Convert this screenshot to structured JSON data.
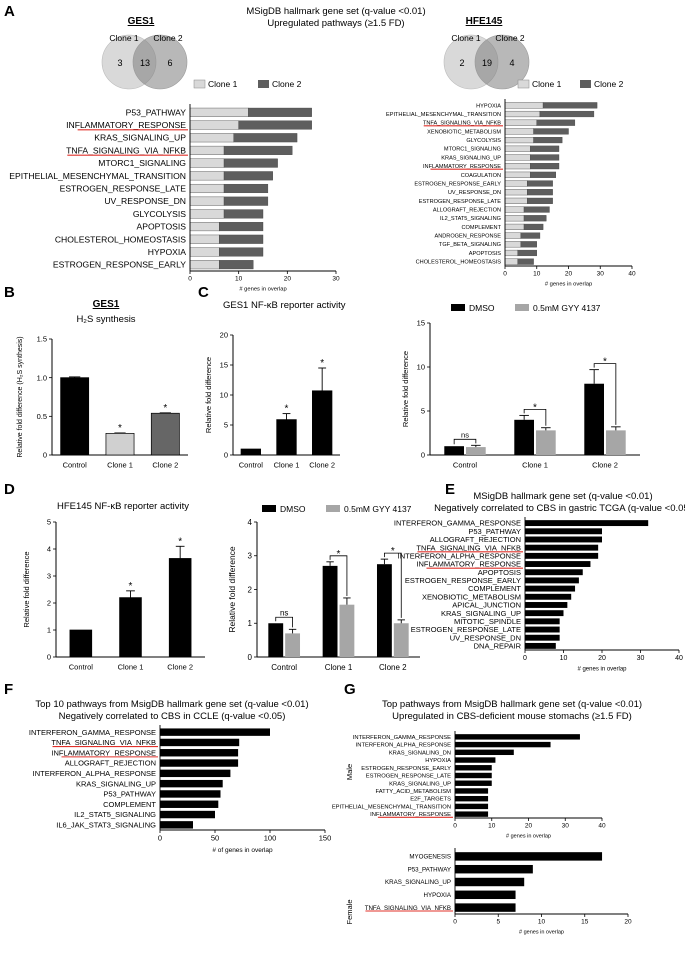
{
  "panel_labels": {
    "A": "A",
    "B": "B",
    "C": "C",
    "D": "D",
    "E": "E",
    "F": "F",
    "G": "G"
  },
  "panel_a": {
    "title1": "MSigDB hallmark gene set (q-value <0.01)",
    "title2": "Upregulated pathways (≥1.5 FD)",
    "legend_clone1": "Clone 1",
    "legend_clone2": "Clone 2",
    "xlabel": "# genes in overlap"
  },
  "venn_ges1": {
    "title": "GES1",
    "label1": "Clone 1",
    "label2": "Clone 2",
    "only1": "3",
    "both": "13",
    "only2": "6"
  },
  "venn_hfe": {
    "title": "HFE145",
    "label1": "Clone 1",
    "label2": "Clone 2",
    "only1": "2",
    "both": "19",
    "only2": "4"
  },
  "panel_b": {
    "title": "GES1",
    "subtitle": "H₂S synthesis",
    "ylabel": "Relative fold difference (H₂S synthesis)"
  },
  "panel_c": {
    "title": "GES1 NF-κB reporter activity",
    "ylabel": "Relative fold difference",
    "legend_dmso": "DMSO",
    "legend_gyy": "0.5mM GYY 4137"
  },
  "panel_d": {
    "title": "HFE145 NF-κB reporter activity",
    "ylabel": "Relative fold difference",
    "legend_dmso": "DMSO",
    "legend_gyy": "0.5mM GYY 4137"
  },
  "panel_e": {
    "title1": "MSigDB hallmark gene set (q-value <0.01)",
    "title2": "Negatively correlated to CBS in gastric TCGA (q-value <0.05)",
    "xlabel": "# genes in overlap"
  },
  "panel_f": {
    "title1": "Top 10 pathways from MsigDB hallmark gene set (q-value <0.01)",
    "title2": "Negatively correlated to CBS in CCLE (q-value <0.05)",
    "xlabel": "# of genes in overlap"
  },
  "panel_g": {
    "title1": "Top pathways from MsigDB hallmark gene set (q-value <0.01)",
    "title2": "Upregulated in CBS-deficient mouse stomachs (≥1.5 FD)",
    "xlabel": "# genes in overlap",
    "male_label": "Male",
    "female_label": "Female"
  },
  "colors": {
    "clone1": "#d9d9d9",
    "clone2": "#5e5e5e",
    "dmso": "#000000",
    "gyy": "#a6a6a6",
    "highlight": "#e0302a",
    "venn_fill": "#d9d9d9",
    "venn_overlap": "#9e9e9e"
  },
  "chart_data": [
    {
      "id": "A_ges1",
      "type": "bar",
      "orientation": "horizontal",
      "stacked": true,
      "categories": [
        "P53_PATHWAY",
        "INFLAMMATORY_RESPONSE",
        "KRAS_SIGNALING_UP",
        "TNFA_SIGNALING_VIA_NFKB",
        "MTORC1_SIGNALING",
        "EPITHELIAL_MESENCHYMAL_TRANSITION",
        "ESTROGEN_RESPONSE_LATE",
        "UV_RESPONSE_DN",
        "GLYCOLYSIS",
        "APOPTOSIS",
        "CHOLESTEROL_HOMEOSTASIS",
        "HYPOXIA",
        "ESTROGEN_RESPONSE_EARLY"
      ],
      "highlight": [
        "INFLAMMATORY_RESPONSE",
        "TNFA_SIGNALING_VIA_NFKB"
      ],
      "series": [
        {
          "name": "Clone 1",
          "values": [
            12,
            10,
            9,
            7,
            7,
            7,
            7,
            7,
            7,
            6,
            6,
            6,
            6
          ]
        },
        {
          "name": "Clone 2",
          "values": [
            13,
            15,
            13,
            14,
            11,
            10,
            9,
            9,
            8,
            9,
            9,
            9,
            7
          ]
        }
      ],
      "xlim": [
        0,
        30
      ],
      "xticks": [
        0,
        10,
        20,
        30
      ],
      "xlabel": "# genes in overlap"
    },
    {
      "id": "A_hfe",
      "type": "bar",
      "orientation": "horizontal",
      "stacked": true,
      "categories": [
        "HYPOXIA",
        "EPITHELIAL_MESENCHYMAL_TRANSITION",
        "TNFA_SIGNALING_VIA_NFKB",
        "XENOBIOTIC_METABOLISM",
        "GLYCOLYSIS",
        "MTORC1_SIGNALING",
        "KRAS_SIGNALING_UP",
        "INFLAMMATORY_RESPONSE",
        "COAGULATION",
        "ESTROGEN_RESPONSE_EARLY",
        "UV_RESPONSE_DN",
        "ESTROGEN_RESPONSE_LATE",
        "ALLOGRAFT_REJECTION",
        "IL2_STAT5_SIGNALING",
        "COMPLEMENT",
        "ANDROGEN_RESPONSE",
        "TGF_BETA_SIGNALING",
        "APOPTOSIS",
        "CHOLESTEROL_HOMEOSTASIS"
      ],
      "highlight": [
        "TNFA_SIGNALING_VIA_NFKB",
        "INFLAMMATORY_RESPONSE"
      ],
      "series": [
        {
          "name": "Clone 1",
          "values": [
            12,
            11,
            10,
            9,
            9,
            8,
            8,
            8,
            8,
            7,
            7,
            7,
            6,
            6,
            6,
            5,
            5,
            4,
            4
          ]
        },
        {
          "name": "Clone 2",
          "values": [
            17,
            17,
            12,
            11,
            9,
            9,
            9,
            9,
            8,
            8,
            8,
            8,
            8,
            7,
            6,
            6,
            5,
            6,
            5
          ]
        }
      ],
      "xlim": [
        0,
        40
      ],
      "xticks": [
        0,
        10,
        20,
        30,
        40
      ],
      "xlabel": "# genes in overlap"
    },
    {
      "id": "B",
      "type": "bar",
      "categories": [
        "Control",
        "Clone 1",
        "Clone 2"
      ],
      "values": [
        1.0,
        0.28,
        0.54
      ],
      "errors": [
        0.01,
        0.005,
        0.005
      ],
      "colors": [
        "#000000",
        "#d0d0d0",
        "#666666"
      ],
      "significance": [
        "",
        "*",
        "*"
      ],
      "ylim": [
        0,
        1.5
      ],
      "yticks": [
        "0",
        "0.5",
        "1.0",
        "1.5"
      ],
      "ylabel": "Relative fold difference (H₂S synthesis)"
    },
    {
      "id": "C_left",
      "type": "bar",
      "categories": [
        "Control",
        "Clone 1",
        "Clone 2"
      ],
      "values": [
        1.0,
        5.9,
        10.7
      ],
      "errors": [
        0,
        1.0,
        3.8
      ],
      "significance": [
        "",
        "*",
        "*"
      ],
      "ylim": [
        0,
        20
      ],
      "yticks": [
        "0",
        "5",
        "10",
        "15",
        "20"
      ],
      "ylabel": "Relative fold difference"
    },
    {
      "id": "C_right",
      "type": "bar",
      "categories": [
        "Control",
        "Clone 1",
        "Clone 2"
      ],
      "series": [
        {
          "name": "DMSO",
          "values": [
            1.0,
            4.0,
            8.1
          ],
          "errors": [
            0,
            0.5,
            1.6
          ]
        },
        {
          "name": "0.5mM GYY 4137",
          "values": [
            0.9,
            2.8,
            2.8
          ],
          "errors": [
            0.2,
            0.3,
            0.4
          ]
        }
      ],
      "brackets": [
        "ns",
        "*",
        "*"
      ],
      "ylim": [
        0,
        15
      ],
      "yticks": [
        "0",
        "5",
        "10",
        "15"
      ],
      "ylabel": "Relative fold difference"
    },
    {
      "id": "D_left",
      "type": "bar",
      "categories": [
        "Control",
        "Clone 1",
        "Clone 2"
      ],
      "values": [
        1.0,
        2.2,
        3.65
      ],
      "errors": [
        0,
        0.25,
        0.45
      ],
      "significance": [
        "",
        "*",
        "*"
      ],
      "ylim": [
        0,
        5
      ],
      "yticks": [
        "0",
        "1",
        "2",
        "3",
        "4",
        "5"
      ],
      "ylabel": "Relative fold difference"
    },
    {
      "id": "D_right",
      "type": "bar",
      "categories": [
        "Control",
        "Clone 1",
        "Clone 2"
      ],
      "series": [
        {
          "name": "DMSO",
          "values": [
            1.0,
            2.7,
            2.75
          ],
          "errors": [
            0,
            0.12,
            0.15
          ]
        },
        {
          "name": "0.5mM GYY 4137",
          "values": [
            0.7,
            1.55,
            1.0
          ],
          "errors": [
            0.12,
            0.2,
            0.1
          ]
        }
      ],
      "brackets": [
        "ns",
        "*",
        "*"
      ],
      "ylim": [
        0,
        4
      ],
      "yticks": [
        "0",
        "1",
        "2",
        "3",
        "4"
      ],
      "ylabel": "Relative fold difference"
    },
    {
      "id": "E",
      "type": "bar",
      "orientation": "horizontal",
      "categories": [
        "INTERFERON_GAMMA_RESPONSE",
        "P53_PATHWAY",
        "ALLOGRAFT_REJECTION",
        "TNFA_SIGNALING_VIA_NFKB",
        "INTERFERON_ALPHA_RESPONSE",
        "INFLAMMATORY_RESPONSE",
        "APOPTOSIS",
        "ESTROGEN_RESPONSE_EARLY",
        "COMPLEMENT",
        "XENOBIOTIC_METABOLISM",
        "APICAL_JUNCTION",
        "KRAS_SIGNALING_UP",
        "MITOTIC_SPINDLE",
        "ESTROGEN_RESPONSE_LATE",
        "UV_RESPONSE_DN",
        "DNA_REPAIR"
      ],
      "highlight": [
        "TNFA_SIGNALING_VIA_NFKB",
        "INFLAMMATORY_RESPONSE"
      ],
      "values": [
        32,
        20,
        20,
        19,
        19,
        17,
        15,
        14,
        13,
        12,
        11,
        10,
        9,
        9,
        9,
        8
      ],
      "xlim": [
        0,
        40
      ],
      "xticks": [
        0,
        10,
        20,
        30,
        40
      ],
      "xlabel": "# genes in overlap"
    },
    {
      "id": "F",
      "type": "bar",
      "orientation": "horizontal",
      "categories": [
        "INTERFERON_GAMMA_RESPONSE",
        "TNFA_SIGNALING_VIA_NFKB",
        "INFLAMMATORY_RESPONSE",
        "ALLOGRAFT_REJECTION",
        "INTERFERON_ALPHA_RESPONSE",
        "KRAS_SIGNALING_UP",
        "P53_PATHWAY",
        "COMPLEMENT",
        "IL2_STAT5_SIGNALING",
        "IL6_JAK_STAT3_SIGNALING"
      ],
      "highlight": [
        "TNFA_SIGNALING_VIA_NFKB",
        "INFLAMMATORY_RESPONSE"
      ],
      "values": [
        100,
        72,
        71,
        71,
        64,
        57,
        55,
        53,
        50,
        30
      ],
      "xlim": [
        0,
        150
      ],
      "xticks": [
        0,
        50,
        100,
        150
      ],
      "xlabel": "# of genes in overlap"
    },
    {
      "id": "G_male",
      "type": "bar",
      "orientation": "horizontal",
      "categories": [
        "INTERFERON_GAMMA_RESPONSE",
        "INTERFERON_ALPHA_RESPONSE",
        "KRAS_SIGNALING_DN",
        "HYPOXIA",
        "ESTROGEN_RESPONSE_EARLY",
        "ESTROGEN_RESPONSE_LATE",
        "KRAS_SIGNALING_UP",
        "FATTY_ACID_METABOLISM",
        "E2F_TARGETS",
        "EPITHELIAL_MESENCHYMAL_TRANSITION",
        "INFLAMMATORY_RESPONSE"
      ],
      "highlight": [
        "INFLAMMATORY_RESPONSE"
      ],
      "values": [
        34,
        26,
        16,
        11,
        10,
        10,
        10,
        9,
        9,
        9,
        9
      ],
      "xlim": [
        0,
        40
      ],
      "xticks": [
        0,
        10,
        20,
        30,
        40
      ],
      "xlabel": "# genes in overlap"
    },
    {
      "id": "G_female",
      "type": "bar",
      "orientation": "horizontal",
      "categories": [
        "MYOGENESIS",
        "P53_PATHWAY",
        "KRAS_SIGNALING_UP",
        "HYPOXIA",
        "TNFA_SIGNALING_VIA_NFKB"
      ],
      "highlight": [
        "TNFA_SIGNALING_VIA_NFKB"
      ],
      "values": [
        17,
        9,
        8,
        7,
        7
      ],
      "xlim": [
        0,
        20
      ],
      "xticks": [
        0,
        5,
        10,
        15,
        20
      ],
      "xlabel": "# genes in overlap"
    }
  ]
}
